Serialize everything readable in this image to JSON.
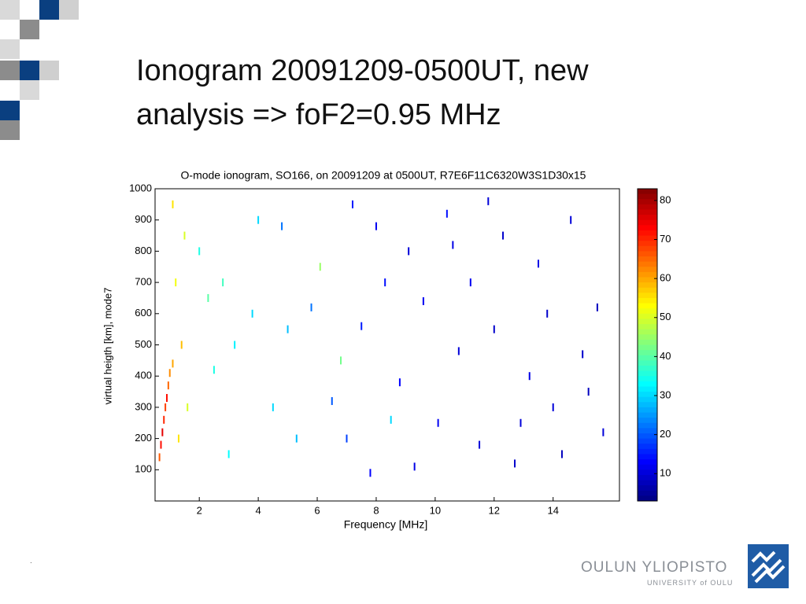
{
  "header": {
    "title_lines": [
      "Ionogram 20091209-0500UT, new",
      "analysis => foF2=0.95 MHz"
    ]
  },
  "chart_data": {
    "type": "scatter",
    "title": "O-mode ionogram, SO166, on 20091209 at 0500UT, R7E6F11C6320W3S1D30x15",
    "x_label": "Frequency [MHz]",
    "y_label": "virtual heigth [km], mode7",
    "xlim": [
      0.5,
      16.25
    ],
    "ylim": [
      0,
      1000
    ],
    "xticks": [
      2,
      4,
      6,
      8,
      10,
      12,
      14
    ],
    "yticks": [
      100,
      200,
      300,
      400,
      500,
      600,
      700,
      800,
      900,
      1000
    ],
    "colorbar": {
      "clim": [
        3,
        83
      ],
      "ticks": [
        10,
        20,
        30,
        40,
        50,
        60,
        70,
        80
      ],
      "colormap": "jet"
    },
    "x": [
      0.7,
      0.75,
      0.8,
      0.85,
      0.9,
      0.95,
      1.0,
      0.65,
      1.1,
      1.3,
      1.4,
      1.2,
      1.5,
      1.1,
      1.6,
      2.3,
      2.8,
      2.5,
      3.2,
      3.8,
      4.5,
      5.3,
      6.1,
      3.0,
      4.0,
      2.0,
      5.0,
      8.5,
      6.8,
      7.2,
      8.0,
      9.1,
      10.4,
      11.2,
      12.3,
      13.5,
      14.6,
      15.5,
      7.5,
      9.6,
      10.8,
      12.0,
      13.2,
      14.0,
      15.2,
      8.8,
      10.1,
      11.5,
      12.7,
      14.3,
      15.7,
      9.3,
      7.8,
      6.5,
      5.8,
      4.8,
      7.0,
      11.8,
      13.8,
      8.3,
      10.6,
      12.9,
      15.0
    ],
    "y": [
      180,
      220,
      260,
      300,
      330,
      370,
      410,
      140,
      440,
      200,
      500,
      700,
      850,
      950,
      300,
      650,
      700,
      420,
      500,
      600,
      300,
      200,
      750,
      150,
      900,
      800,
      550,
      260,
      450,
      950,
      880,
      800,
      920,
      700,
      850,
      760,
      900,
      620,
      560,
      640,
      480,
      550,
      400,
      300,
      350,
      380,
      250,
      180,
      120,
      150,
      220,
      110,
      90,
      320,
      620,
      880,
      200,
      960,
      600,
      700,
      820,
      250,
      470
    ],
    "values": [
      72,
      75,
      70,
      68,
      72,
      65,
      62,
      66,
      60,
      55,
      58,
      52,
      50,
      55,
      50,
      40,
      38,
      35,
      32,
      30,
      30,
      28,
      45,
      33,
      30,
      35,
      28,
      30,
      42,
      15,
      12,
      10,
      14,
      12,
      9,
      11,
      10,
      8,
      15,
      12,
      10,
      9,
      11,
      10,
      8,
      13,
      12,
      10,
      9,
      8,
      10,
      11,
      13,
      20,
      22,
      22,
      18,
      10,
      9,
      14,
      11,
      10,
      9
    ]
  },
  "footer": {
    "dot": ".",
    "university": "OULUN YLIOPISTO",
    "university_en": "UNIVERSITY of OULU"
  }
}
